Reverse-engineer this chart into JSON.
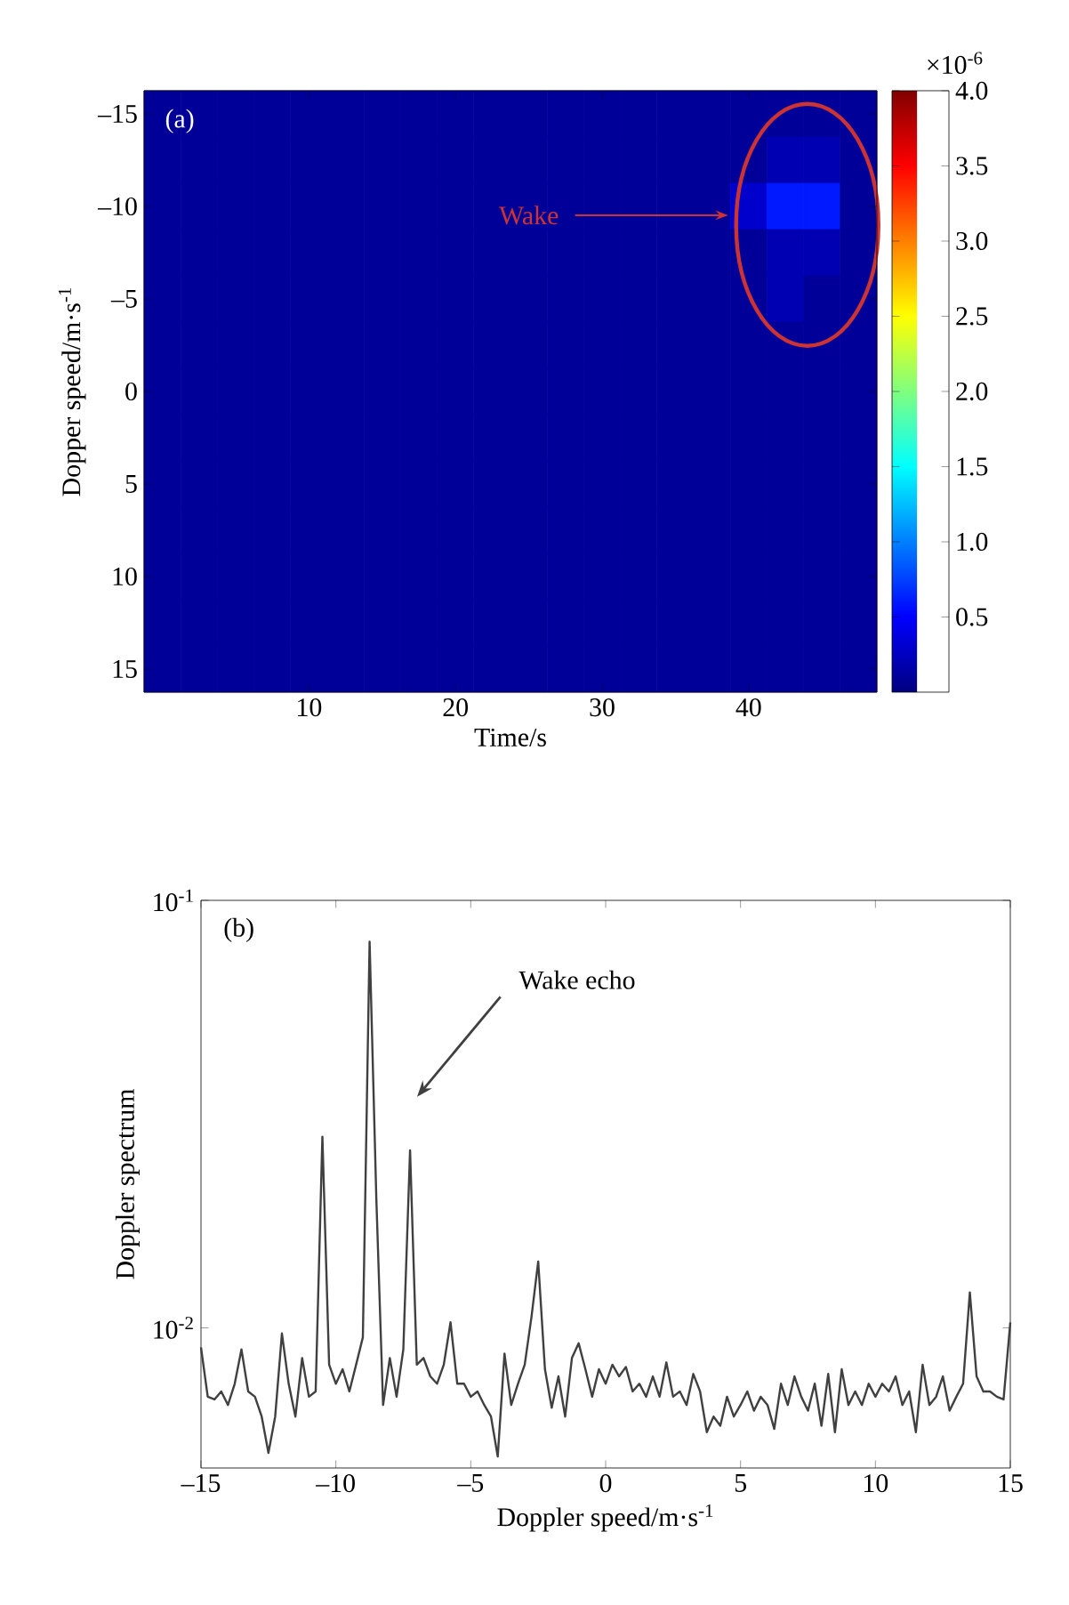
{
  "chart_data": [
    {
      "type": "heatmap",
      "title": "(a)",
      "xlabel": "Time/s",
      "ylabel": "Dopper speed/m·s$^{-1}$",
      "clabel": "×10$^{-6}$",
      "annotations": [
        "Wake"
      ],
      "categories": [
        null,
        null,
        null,
        null,
        "10",
        null,
        null,
        null,
        "20",
        null,
        null,
        null,
        "30",
        null,
        null,
        null,
        "40",
        null,
        null,
        null
      ],
      "y_categories": [
        "–15",
        null,
        "–10",
        null,
        "–5",
        null,
        "0",
        null,
        "5",
        null,
        "10",
        null,
        "15"
      ],
      "cells": [
        [
          0.1,
          0.1,
          0.1,
          0.1,
          0.1,
          0.1,
          0.1,
          0.1,
          0.1,
          0.1,
          0.1,
          0.1,
          0.1,
          0.1,
          0.1,
          0.1,
          0.1,
          0.1,
          0.1,
          0.1
        ],
        [
          0.1,
          0.1,
          0.1,
          0.1,
          0.1,
          0.1,
          0.1,
          0.1,
          0.1,
          0.1,
          0.1,
          0.1,
          0.1,
          0.1,
          0.1,
          0.1,
          0.1,
          0.2,
          0.2,
          0.1
        ],
        [
          0.1,
          0.1,
          0.1,
          0.1,
          0.1,
          0.1,
          0.1,
          0.1,
          0.1,
          0.1,
          0.1,
          0.1,
          0.1,
          0.1,
          0.1,
          0.1,
          0.3,
          0.6,
          0.6,
          0.1
        ],
        [
          0.1,
          0.1,
          0.1,
          0.1,
          0.1,
          0.1,
          0.1,
          0.1,
          0.1,
          0.1,
          0.1,
          0.1,
          0.1,
          0.1,
          0.1,
          0.1,
          0.1,
          0.2,
          0.2,
          0.1
        ],
        [
          0.1,
          0.1,
          0.1,
          0.1,
          0.1,
          0.1,
          0.1,
          0.1,
          0.1,
          0.1,
          0.1,
          0.1,
          0.1,
          0.1,
          0.1,
          0.1,
          0.1,
          0.2,
          0.1,
          0.1
        ],
        [
          0.1,
          0.1,
          0.1,
          0.1,
          0.1,
          0.1,
          0.1,
          0.1,
          0.1,
          0.1,
          0.1,
          0.1,
          0.1,
          0.1,
          0.1,
          0.1,
          0.1,
          0.1,
          0.1,
          0.1
        ],
        [
          0.1,
          0.1,
          0.1,
          0.1,
          0.1,
          0.1,
          0.1,
          0.1,
          0.1,
          0.1,
          0.1,
          0.1,
          0.1,
          0.1,
          0.1,
          0.1,
          0.1,
          0.1,
          0.1,
          0.1
        ],
        [
          0.1,
          0.1,
          0.1,
          0.1,
          0.1,
          0.1,
          0.1,
          0.1,
          0.1,
          0.1,
          0.1,
          0.1,
          0.1,
          0.1,
          0.1,
          0.1,
          0.1,
          0.1,
          0.1,
          0.1
        ],
        [
          0.1,
          0.1,
          0.1,
          0.1,
          0.1,
          0.1,
          0.1,
          0.1,
          0.1,
          0.1,
          0.1,
          0.1,
          0.1,
          0.1,
          0.1,
          0.1,
          0.1,
          0.1,
          0.1,
          0.1
        ],
        [
          0.1,
          0.1,
          0.1,
          0.1,
          0.1,
          0.1,
          0.1,
          0.1,
          0.1,
          0.1,
          0.1,
          0.1,
          0.1,
          0.1,
          0.1,
          0.1,
          0.1,
          0.1,
          0.1,
          0.1
        ],
        [
          0.1,
          0.1,
          0.1,
          0.1,
          0.1,
          0.1,
          0.1,
          0.1,
          0.1,
          0.1,
          0.1,
          0.1,
          0.1,
          0.1,
          0.1,
          0.1,
          0.1,
          0.1,
          0.1,
          0.1
        ],
        [
          0.1,
          0.1,
          0.1,
          0.1,
          0.1,
          0.1,
          0.1,
          0.1,
          0.1,
          0.1,
          0.1,
          0.1,
          0.1,
          0.1,
          0.1,
          0.1,
          0.1,
          0.1,
          0.1,
          0.1
        ],
        [
          0.1,
          0.1,
          0.1,
          0.1,
          0.1,
          0.1,
          0.1,
          0.1,
          0.1,
          0.1,
          0.1,
          0.1,
          0.1,
          0.1,
          0.1,
          0.1,
          0.1,
          0.1,
          0.1,
          0.1
        ]
      ],
      "clim": [
        0,
        4
      ],
      "cticks": [
        0.5,
        {
          "value": 1,
          "label": "1.0"
        },
        1.5,
        {
          "value": 2,
          "label": "2.0"
        },
        2.5,
        {
          "value": 3,
          "label": "3.0"
        },
        3.5,
        {
          "value": 4,
          "label": "4.0"
        }
      ]
    },
    {
      "type": "line",
      "title": "(b)",
      "xlabel": "Doppler speed/m·s$^{-1}$",
      "ylabel": "Doppler spectrum",
      "annotations": [
        "Wake echo"
      ],
      "x": [
        -15,
        -14.75,
        -14.5,
        -14.25,
        -14,
        -13.75,
        -13.5,
        -13.25,
        -13,
        -12.75,
        -12.5,
        -12.25,
        -12,
        -11.75,
        -11.5,
        -11.25,
        -11,
        -10.75,
        -10.5,
        -10.25,
        -10,
        -9.75,
        -9.5,
        -9.25,
        -9,
        -8.75,
        -8.5,
        -8.25,
        -8,
        -7.75,
        -7.5,
        -7.25,
        -7,
        -6.75,
        -6.5,
        -6.25,
        -6,
        -5.75,
        -5.5,
        -5.25,
        -5,
        -4.75,
        -4.5,
        -4.25,
        -4,
        -3.75,
        -3.5,
        -3.25,
        -3,
        -2.75,
        -2.5,
        -2.25,
        -2,
        -1.75,
        -1.5,
        -1.25,
        -1,
        -0.75,
        -0.5,
        -0.25,
        0,
        0.25,
        0.5,
        0.75,
        1,
        1.25,
        1.5,
        1.75,
        2,
        2.25,
        2.5,
        2.75,
        3,
        3.25,
        3.5,
        3.75,
        4,
        4.25,
        4.5,
        4.75,
        5,
        5.25,
        5.5,
        5.75,
        6,
        6.25,
        6.5,
        6.75,
        7,
        7.25,
        7.5,
        7.75,
        8,
        8.25,
        8.5,
        8.75,
        9,
        9.25,
        9.5,
        9.75,
        10,
        10.25,
        10.5,
        10.75,
        11,
        11.25,
        11.5,
        11.75,
        12,
        12.25,
        12.5,
        12.75,
        13,
        13.25,
        13.5,
        13.75,
        14,
        14.25,
        14.5,
        14.75,
        15
      ],
      "series": [
        {
          "color": "#404040",
          "values": [
            0.009,
            0.0069,
            0.0068,
            0.0071,
            0.0066,
            0.0074,
            0.0089,
            0.0071,
            0.0069,
            0.0062,
            0.0051,
            0.0062,
            0.0097,
            0.0074,
            0.0062,
            0.0085,
            0.0069,
            0.0071,
            0.028,
            0.0082,
            0.0074,
            0.008,
            0.0071,
            0.0082,
            0.0095,
            0.08,
            0.02,
            0.0066,
            0.0085,
            0.0069,
            0.0089,
            0.026,
            0.0082,
            0.0085,
            0.0077,
            0.0074,
            0.0082,
            0.0103,
            0.0074,
            0.0074,
            0.0069,
            0.0071,
            0.0066,
            0.0062,
            0.005,
            0.0087,
            0.0066,
            0.0074,
            0.0082,
            0.0106,
            0.0143,
            0.008,
            0.0065,
            0.0077,
            0.0062,
            0.0085,
            0.0092,
            0.008,
            0.0069,
            0.008,
            0.0074,
            0.0082,
            0.0077,
            0.0081,
            0.0071,
            0.0074,
            0.0069,
            0.0077,
            0.0069,
            0.0083,
            0.0069,
            0.0071,
            0.0066,
            0.0078,
            0.0071,
            0.0057,
            0.0062,
            0.0059,
            0.0069,
            0.0062,
            0.0066,
            0.0071,
            0.0064,
            0.0069,
            0.0066,
            0.0058,
            0.0074,
            0.0066,
            0.0077,
            0.0069,
            0.0064,
            0.0074,
            0.0059,
            0.0078,
            0.0057,
            0.008,
            0.0066,
            0.0071,
            0.0066,
            0.0074,
            0.0069,
            0.0074,
            0.0071,
            0.0077,
            0.0066,
            0.0071,
            0.0057,
            0.0082,
            0.0066,
            0.0069,
            0.0077,
            0.0064,
            0.0069,
            0.0074,
            0.0121,
            0.0077,
            0.0071,
            0.0071,
            0.0069,
            0.0068,
            0.0103
          ]
        }
      ],
      "xlim": [
        -15,
        15
      ],
      "xticks": [
        {
          "value": -15,
          "label": "–15"
        },
        {
          "value": -10,
          "label": "–10"
        },
        {
          "value": -5,
          "label": "–5"
        },
        0,
        5,
        10,
        15
      ],
      "ylim": [
        0.0047,
        0.1
      ],
      "yticks": [
        {
          "value": 0.01,
          "label": "10$^{-2}$"
        },
        {
          "value": 0.1,
          "label": "10$^{-1}$"
        }
      ],
      "log": "y"
    }
  ]
}
